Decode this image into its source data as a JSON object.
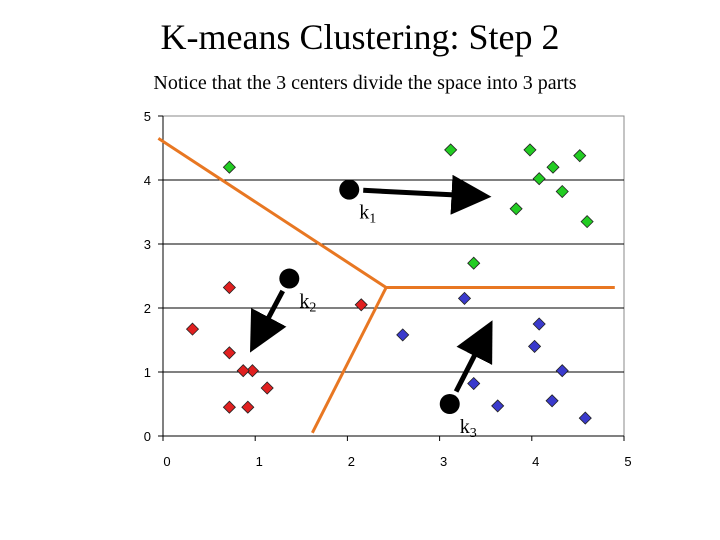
{
  "title": "K-means Clustering: Step 2",
  "subtitle": "Notice that the 3 centers divide the space into 3 parts",
  "chart_data": {
    "type": "scatter",
    "xlim": [
      0,
      5
    ],
    "ylim": [
      0,
      5
    ],
    "x_ticks": [
      "0",
      "1",
      "2",
      "3",
      "4",
      "5"
    ],
    "y_ticks": [
      "0",
      "1",
      "2",
      "3",
      "4",
      "5"
    ],
    "grid": "horizontal",
    "colors": {
      "green": "#22cc22",
      "red": "#e02020",
      "blue": "#3a3acc",
      "boundary": "#e87722",
      "center": "#000000"
    },
    "series": [
      {
        "color": "green",
        "points": [
          [
            0.72,
            4.2
          ],
          [
            3.12,
            4.47
          ],
          [
            3.98,
            4.47
          ],
          [
            4.52,
            4.38
          ],
          [
            4.23,
            4.2
          ],
          [
            4.08,
            4.02
          ],
          [
            4.33,
            3.82
          ],
          [
            3.83,
            3.55
          ],
          [
            4.6,
            3.35
          ],
          [
            3.37,
            2.7
          ]
        ]
      },
      {
        "color": "red",
        "points": [
          [
            0.72,
            2.32
          ],
          [
            0.32,
            1.67
          ],
          [
            0.72,
            1.3
          ],
          [
            0.97,
            1.02
          ],
          [
            0.87,
            1.02
          ],
          [
            1.13,
            0.75
          ],
          [
            0.72,
            0.45
          ],
          [
            0.92,
            0.45
          ],
          [
            2.15,
            2.05
          ]
        ]
      },
      {
        "color": "blue",
        "points": [
          [
            3.27,
            2.15
          ],
          [
            2.6,
            1.58
          ],
          [
            4.08,
            1.75
          ],
          [
            4.03,
            1.4
          ],
          [
            4.33,
            1.02
          ],
          [
            3.37,
            0.82
          ],
          [
            4.22,
            0.55
          ],
          [
            3.63,
            0.47
          ],
          [
            4.58,
            0.28
          ]
        ]
      }
    ],
    "centers": [
      {
        "label": "k",
        "sub": "1",
        "x": 2.02,
        "y": 3.85,
        "arrow_to": [
          3.4,
          3.75
        ]
      },
      {
        "label": "k",
        "sub": "2",
        "x": 1.37,
        "y": 2.46,
        "arrow_to": [
          1.02,
          1.51
        ]
      },
      {
        "label": "k",
        "sub": "3",
        "x": 3.11,
        "y": 0.5,
        "arrow_to": [
          3.5,
          1.6
        ]
      }
    ],
    "boundaries": [
      [
        [
          -0.05,
          4.65
        ],
        [
          2.42,
          2.32
        ],
        [
          4.9,
          2.32
        ]
      ],
      [
        [
          2.42,
          2.32
        ],
        [
          1.62,
          0.05
        ]
      ]
    ]
  }
}
